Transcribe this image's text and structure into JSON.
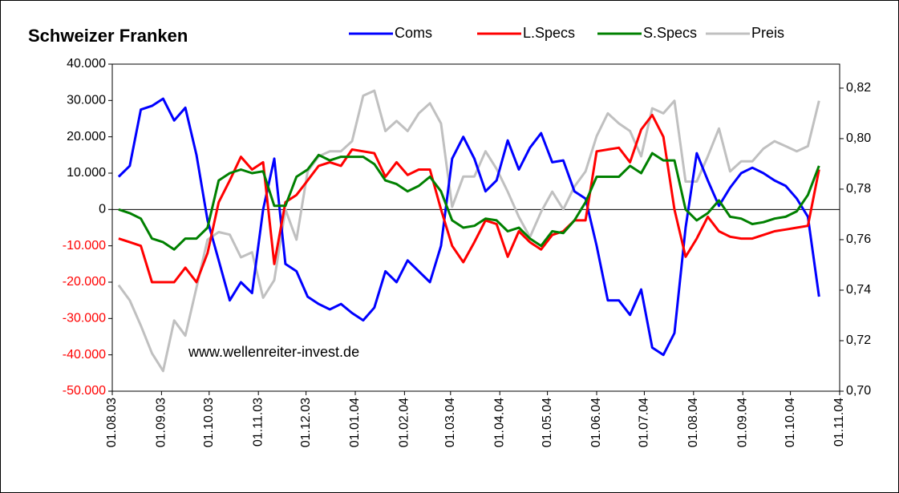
{
  "chart_data": {
    "type": "line",
    "title": "Schweizer Franken",
    "annotation": "www.wellenreiter-invest.de",
    "legend": "top-right",
    "negative_tick_color": "#ff0000",
    "x": [
      "2003-08-05",
      "2003-08-12",
      "2003-08-19",
      "2003-08-26",
      "2003-09-02",
      "2003-09-09",
      "2003-09-16",
      "2003-09-23",
      "2003-09-30",
      "2003-10-07",
      "2003-10-14",
      "2003-10-21",
      "2003-10-28",
      "2003-11-04",
      "2003-11-11",
      "2003-11-18",
      "2003-11-25",
      "2003-12-02",
      "2003-12-09",
      "2003-12-16",
      "2003-12-23",
      "2003-12-30",
      "2004-01-06",
      "2004-01-13",
      "2004-01-20",
      "2004-01-27",
      "2004-02-03",
      "2004-02-10",
      "2004-02-17",
      "2004-02-24",
      "2004-03-02",
      "2004-03-09",
      "2004-03-16",
      "2004-03-23",
      "2004-03-30",
      "2004-04-06",
      "2004-04-13",
      "2004-04-20",
      "2004-04-27",
      "2004-05-04",
      "2004-05-11",
      "2004-05-18",
      "2004-05-25",
      "2004-06-01",
      "2004-06-08",
      "2004-06-15",
      "2004-06-22",
      "2004-06-29",
      "2004-07-06",
      "2004-07-13",
      "2004-07-20",
      "2004-07-27",
      "2004-08-03",
      "2004-08-10",
      "2004-08-17",
      "2004-08-24",
      "2004-08-31",
      "2004-09-07",
      "2004-09-14",
      "2004-09-21",
      "2004-09-28",
      "2004-10-05",
      "2004-10-12",
      "2004-10-19"
    ],
    "xlim": [
      "2003-08-01",
      "2004-11-01"
    ],
    "xticks": [
      {
        "value": "2003-08-01",
        "label": "01.08.03"
      },
      {
        "value": "2003-09-01",
        "label": "01.09.03"
      },
      {
        "value": "2003-10-01",
        "label": "01.10.03"
      },
      {
        "value": "2003-11-01",
        "label": "01.11.03"
      },
      {
        "value": "2003-12-01",
        "label": "01.12.03"
      },
      {
        "value": "2004-01-01",
        "label": "01.01.04"
      },
      {
        "value": "2004-02-01",
        "label": "01.02.04"
      },
      {
        "value": "2004-03-01",
        "label": "01.03.04"
      },
      {
        "value": "2004-04-01",
        "label": "01.04.04"
      },
      {
        "value": "2004-05-01",
        "label": "01.05.04"
      },
      {
        "value": "2004-06-01",
        "label": "01.06.04"
      },
      {
        "value": "2004-07-01",
        "label": "01.07.04"
      },
      {
        "value": "2004-08-01",
        "label": "01.08.04"
      },
      {
        "value": "2004-09-01",
        "label": "01.09.04"
      },
      {
        "value": "2004-10-01",
        "label": "01.10.04"
      },
      {
        "value": "2004-11-01",
        "label": "01.11.04"
      }
    ],
    "ylim": [
      -50000,
      40000
    ],
    "yticks": [
      {
        "value": 40000,
        "label": "40.000"
      },
      {
        "value": 30000,
        "label": "30.000"
      },
      {
        "value": 20000,
        "label": "20.000"
      },
      {
        "value": 10000,
        "label": "10.000"
      },
      0,
      {
        "value": -10000,
        "label": "-10.000"
      },
      {
        "value": -20000,
        "label": "-20.000"
      },
      {
        "value": -30000,
        "label": "-30.000"
      },
      {
        "value": -40000,
        "label": "-40.000"
      },
      {
        "value": -50000,
        "label": "-50.000"
      }
    ],
    "y2lim": [
      0.7,
      0.8295
    ],
    "y2ticks": [
      {
        "value": 0.82,
        "label": "0,82"
      },
      {
        "value": 0.8,
        "label": "0,80"
      },
      {
        "value": 0.78,
        "label": "0,78"
      },
      {
        "value": 0.76,
        "label": "0,76"
      },
      {
        "value": 0.74,
        "label": "0,74"
      },
      {
        "value": 0.72,
        "label": "0,72"
      },
      {
        "value": 0.7,
        "label": "0,70"
      }
    ],
    "series": [
      {
        "name": "Coms",
        "color": "#0000ff",
        "values": [
          9000,
          12000,
          27500,
          28500,
          30500,
          24500,
          28000,
          15000,
          -3000,
          -14000,
          -25000,
          -20000,
          -23000,
          0,
          14000,
          -15000,
          -17000,
          -24000,
          -26000,
          -27500,
          -26000,
          -28500,
          -30500,
          -27000,
          -17000,
          -20000,
          -14000,
          -17000,
          -20000,
          -10000,
          14000,
          20000,
          14000,
          5000,
          8000,
          19000,
          11000,
          17000,
          21000,
          13000,
          13500,
          5000,
          3000,
          -10000,
          -25000,
          -25000,
          -29000,
          -22000,
          -38000,
          -40000,
          -34000,
          -5000,
          15500,
          8000,
          1000,
          6000,
          10000,
          11500,
          10000,
          8000,
          6500,
          3000,
          -2000,
          -24000
        ]
      },
      {
        "name": "L.Specs",
        "color": "#ff0000",
        "values": [
          -8000,
          -9000,
          -10000,
          -20000,
          -20000,
          -20000,
          -16000,
          -20000,
          -12000,
          2000,
          8000,
          14500,
          11000,
          13000,
          -15000,
          2000,
          4000,
          8000,
          12000,
          13000,
          12000,
          16500,
          16000,
          15500,
          9000,
          13000,
          9500,
          11000,
          11000,
          0,
          -10000,
          -14500,
          -9000,
          -3000,
          -4000,
          -13000,
          -6000,
          -9000,
          -11000,
          -7000,
          -6000,
          -3000,
          -3000,
          16000,
          16500,
          17000,
          13000,
          22000,
          26000,
          20000,
          0,
          -13000,
          -8000,
          -2000,
          -6000,
          -7500,
          -8000,
          -8000,
          -7000,
          -6000,
          -5500,
          -5000,
          -4500,
          11000
        ]
      },
      {
        "name": "S.Specs",
        "color": "#008000",
        "values": [
          0,
          -1000,
          -2500,
          -8000,
          -9000,
          -11000,
          -8000,
          -8000,
          -5000,
          8000,
          10000,
          11000,
          10000,
          10500,
          1000,
          1000,
          9000,
          11000,
          15000,
          13500,
          14500,
          14500,
          14500,
          12500,
          8000,
          7000,
          5000,
          6500,
          9000,
          5000,
          -3000,
          -5000,
          -4500,
          -2500,
          -3000,
          -6000,
          -5000,
          -8000,
          -10000,
          -6000,
          -6500,
          -3000,
          2000,
          9000,
          9000,
          9000,
          12000,
          10000,
          15500,
          13500,
          13500,
          0,
          -3000,
          -1000,
          2500,
          -2000,
          -2500,
          -4000,
          -3500,
          -2500,
          -2000,
          -500,
          4000,
          12000
        ]
      },
      {
        "name": "Preis",
        "color": "#c0c0c0",
        "axis": "y2",
        "values": [
          0.742,
          0.736,
          0.726,
          0.715,
          0.708,
          0.728,
          0.722,
          0.741,
          0.76,
          0.763,
          0.762,
          0.753,
          0.755,
          0.737,
          0.744,
          0.772,
          0.76,
          0.787,
          0.793,
          0.795,
          0.795,
          0.799,
          0.817,
          0.819,
          0.803,
          0.807,
          0.803,
          0.81,
          0.814,
          0.806,
          0.773,
          0.785,
          0.785,
          0.795,
          0.788,
          0.779,
          0.769,
          0.761,
          0.771,
          0.779,
          0.772,
          0.781,
          0.787,
          0.801,
          0.81,
          0.806,
          0.803,
          0.793,
          0.812,
          0.81,
          0.815,
          0.783,
          0.783,
          0.793,
          0.804,
          0.787,
          0.791,
          0.791,
          0.796,
          0.799,
          0.797,
          0.795,
          0.797,
          0.815
        ]
      }
    ]
  }
}
